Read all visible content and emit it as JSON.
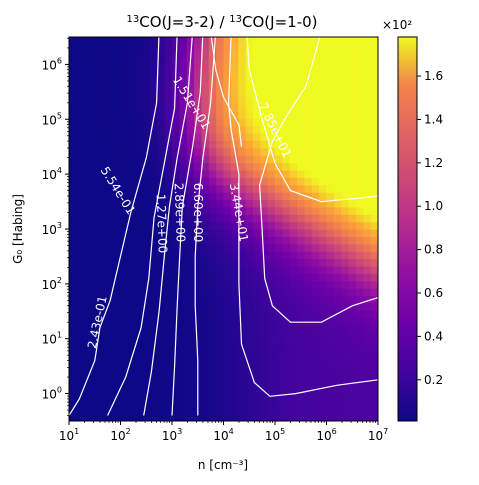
{
  "chart_data": {
    "type": "heatmap",
    "title": "13CO(J=3-2) / 13CO(J=1-0)",
    "title_parts": {
      "iso1": "13",
      "mol1": "CO(J=3-2) / ",
      "iso2": "13",
      "mol2": "CO(J=1-0)"
    },
    "xlabel": "n [cm⁻³]",
    "ylabel": "G₀ [Habing]",
    "x_scale": "log",
    "y_scale": "log",
    "xlim": [
      10,
      10000000
    ],
    "ylim": [
      0.316,
      3162278
    ],
    "x_ticks": [
      {
        "base": "10",
        "exp": "1"
      },
      {
        "base": "10",
        "exp": "2"
      },
      {
        "base": "10",
        "exp": "3"
      },
      {
        "base": "10",
        "exp": "4"
      },
      {
        "base": "10",
        "exp": "5"
      },
      {
        "base": "10",
        "exp": "6"
      },
      {
        "base": "10",
        "exp": "7"
      }
    ],
    "y_ticks": [
      {
        "base": "10",
        "exp": "0"
      },
      {
        "base": "10",
        "exp": "1"
      },
      {
        "base": "10",
        "exp": "2"
      },
      {
        "base": "10",
        "exp": "3"
      },
      {
        "base": "10",
        "exp": "4"
      },
      {
        "base": "10",
        "exp": "5"
      },
      {
        "base": "10",
        "exp": "6"
      }
    ],
    "colormap": "plasma",
    "colorbar": {
      "multiplier": "×10²",
      "range": [
        0.01,
        1.78
      ],
      "ticks": [
        "0.2",
        "0.4",
        "0.6",
        "0.8",
        "1.0",
        "1.2",
        "1.4",
        "1.6"
      ],
      "tick_values": [
        0.2,
        0.4,
        0.6,
        0.8,
        1.0,
        1.2,
        1.4,
        1.6
      ]
    },
    "contours": [
      {
        "label": "2.43e-01",
        "value": 0.243
      },
      {
        "label": "5.54e-01",
        "value": 0.554
      },
      {
        "label": "1.27e+00",
        "value": 1.27
      },
      {
        "label": "2.89e+00",
        "value": 2.89
      },
      {
        "label": "6.60e+00",
        "value": 6.6
      },
      {
        "label": "1.51e+01",
        "value": 15.1
      },
      {
        "label": "3.44e+01",
        "value": 34.4
      },
      {
        "label": "7.85e+01",
        "value": 78.5
      }
    ],
    "contour_color": "#ffffff",
    "grid": false,
    "legend": "none"
  }
}
